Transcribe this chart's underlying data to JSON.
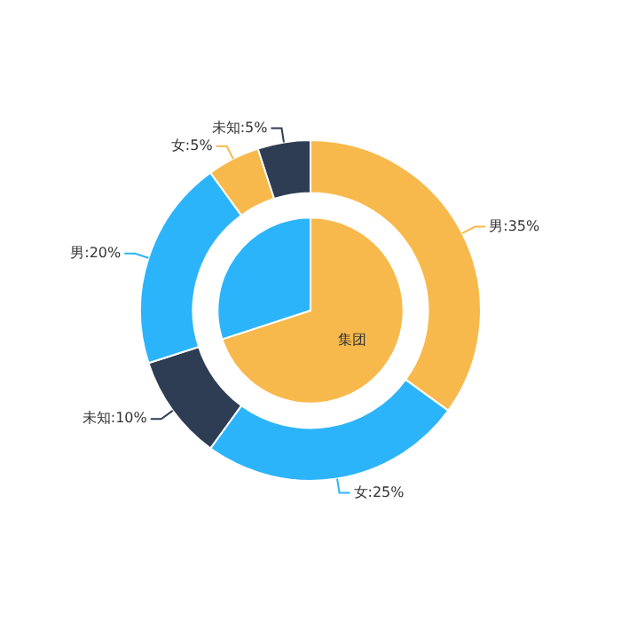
{
  "chart_data": [
    {
      "type": "pie",
      "categories": [
        "集团",
        null
      ],
      "values": [
        70,
        30
      ],
      "colors": [
        "#f8b94c",
        "#2cb4fa"
      ],
      "legend": false
    },
    {
      "type": "donut",
      "categories": [
        "男:35%",
        "女:25%",
        "未知:10%",
        "男:20%",
        "女:5%",
        "未知:5%"
      ],
      "values": [
        35,
        25,
        10,
        20,
        5,
        5
      ],
      "colors": [
        "#f8b94c",
        "#2cb4fa",
        "#2e3d54",
        "#2cb4fa",
        "#f8b94c",
        "#2e3d54"
      ],
      "legend": false
    }
  ]
}
